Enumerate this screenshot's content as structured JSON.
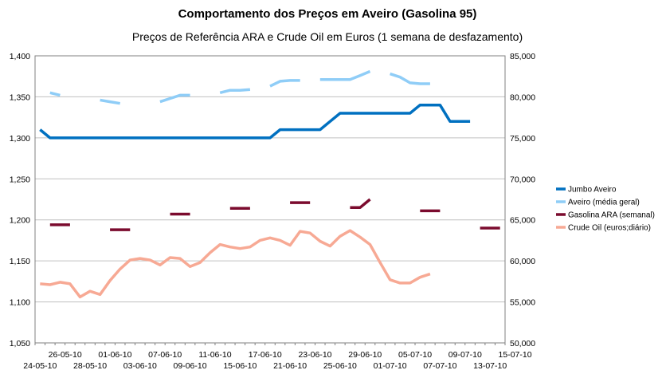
{
  "chart_data": {
    "type": "line",
    "title": "Comportamento dos Preços em Aveiro (Gasolina 95)",
    "subtitle": "Preços de Referência ARA e Crude Oil em Euros (1 semana de desfazamento)",
    "x_labels_upper": [
      "26-05-10",
      "01-06-10",
      "07-06-10",
      "11-06-10",
      "17-06-10",
      "23-06-10",
      "29-06-10",
      "05-07-10",
      "09-07-10",
      "15-07-10"
    ],
    "x_labels_lower": [
      "24-05-10",
      "28-05-10",
      "03-06-10",
      "09-06-10",
      "15-06-10",
      "21-06-10",
      "25-06-10",
      "01-07-10",
      "07-07-10",
      "13-07-10"
    ],
    "y_left": {
      "ylim": [
        1.05,
        1.4
      ],
      "ticks": [
        "1,050",
        "1,100",
        "1,150",
        "1,200",
        "1,250",
        "1,300",
        "1,350",
        "1,400"
      ]
    },
    "y_right": {
      "ylim": [
        50000,
        85000
      ],
      "ticks": [
        "50,000",
        "55,000",
        "60,000",
        "65,000",
        "70,000",
        "75,000",
        "80,000",
        "85,000"
      ]
    },
    "grid": true,
    "legend_position": "right",
    "series": [
      {
        "name": "Jumbo Aveiro",
        "color": "#0070c0",
        "axis": "left",
        "segments": [
          [
            [
              0,
              1.31
            ],
            [
              1,
              1.3
            ],
            [
              2,
              1.3
            ],
            [
              3,
              1.3
            ],
            [
              4,
              1.3
            ],
            [
              5,
              1.3
            ],
            [
              6,
              1.3
            ],
            [
              7,
              1.3
            ],
            [
              8,
              1.3
            ],
            [
              9,
              1.3
            ],
            [
              10,
              1.3
            ],
            [
              11,
              1.3
            ],
            [
              12,
              1.3
            ],
            [
              13,
              1.3
            ],
            [
              14,
              1.3
            ],
            [
              15,
              1.3
            ],
            [
              16,
              1.3
            ],
            [
              17,
              1.3
            ],
            [
              18,
              1.3
            ],
            [
              19,
              1.3
            ],
            [
              20,
              1.3
            ],
            [
              21,
              1.3
            ],
            [
              22,
              1.3
            ],
            [
              23,
              1.3
            ],
            [
              24,
              1.31
            ],
            [
              25,
              1.31
            ],
            [
              26,
              1.31
            ],
            [
              27,
              1.31
            ],
            [
              28,
              1.31
            ],
            [
              29,
              1.32
            ],
            [
              30,
              1.33
            ],
            [
              31,
              1.33
            ],
            [
              32,
              1.33
            ],
            [
              33,
              1.33
            ],
            [
              34,
              1.33
            ],
            [
              35,
              1.33
            ],
            [
              36,
              1.33
            ],
            [
              37,
              1.33
            ],
            [
              38,
              1.34
            ],
            [
              39,
              1.34
            ],
            [
              40,
              1.34
            ],
            [
              41,
              1.32
            ],
            [
              42,
              1.32
            ],
            [
              43,
              1.32
            ]
          ]
        ]
      },
      {
        "name": "Aveiro (média geral)",
        "color": "#8fcdf7",
        "axis": "left",
        "segments": [
          [
            [
              1,
              1.355
            ],
            [
              2,
              1.352
            ]
          ],
          [
            [
              6,
              1.346
            ],
            [
              7,
              1.344
            ],
            [
              8,
              1.342
            ]
          ],
          [
            [
              12,
              1.344
            ],
            [
              13,
              1.348
            ],
            [
              14,
              1.352
            ],
            [
              15,
              1.352
            ]
          ],
          [
            [
              18,
              1.355
            ],
            [
              19,
              1.358
            ],
            [
              20,
              1.358
            ],
            [
              21,
              1.359
            ]
          ],
          [
            [
              23,
              1.363
            ],
            [
              24,
              1.369
            ],
            [
              25,
              1.37
            ],
            [
              26,
              1.37
            ]
          ],
          [
            [
              28,
              1.371
            ],
            [
              29,
              1.371
            ],
            [
              30,
              1.371
            ],
            [
              31,
              1.371
            ],
            [
              32,
              1.376
            ],
            [
              33,
              1.381
            ]
          ],
          [
            [
              35,
              1.378
            ],
            [
              36,
              1.374
            ],
            [
              37,
              1.367
            ],
            [
              38,
              1.366
            ],
            [
              39,
              1.366
            ]
          ]
        ]
      },
      {
        "name": "Gasolina ARA (semanal)",
        "color": "#7b0b2e",
        "axis": "left",
        "segments": [
          [
            [
              1,
              1.194
            ],
            [
              3,
              1.194
            ]
          ],
          [
            [
              7,
              1.188
            ],
            [
              9,
              1.188
            ]
          ],
          [
            [
              13,
              1.207
            ],
            [
              15,
              1.207
            ]
          ],
          [
            [
              19,
              1.214
            ],
            [
              21,
              1.214
            ]
          ],
          [
            [
              25,
              1.221
            ],
            [
              27,
              1.221
            ]
          ],
          [
            [
              31,
              1.215
            ],
            [
              32,
              1.215
            ],
            [
              33,
              1.225
            ]
          ],
          [
            [
              38,
              1.211
            ],
            [
              40,
              1.211
            ]
          ],
          [
            [
              44,
              1.19
            ],
            [
              46,
              1.19
            ]
          ]
        ]
      },
      {
        "name": "Crude Oil (euros;diário)",
        "color": "#f7a994",
        "axis": "right",
        "segments": [
          [
            [
              0,
              57.2
            ],
            [
              1,
              57.1
            ],
            [
              2,
              57.4
            ],
            [
              3,
              57.2
            ],
            [
              4,
              55.6
            ],
            [
              5,
              56.3
            ],
            [
              6,
              55.9
            ],
            [
              7,
              57.6
            ],
            [
              8,
              59.0
            ],
            [
              9,
              60.1
            ],
            [
              10,
              60.3
            ],
            [
              11,
              60.1
            ],
            [
              12,
              59.5
            ],
            [
              13,
              60.4
            ],
            [
              14,
              60.3
            ],
            [
              15,
              59.3
            ],
            [
              16,
              59.8
            ],
            [
              17,
              61.0
            ],
            [
              18,
              62.0
            ],
            [
              19,
              61.7
            ],
            [
              20,
              61.5
            ],
            [
              21,
              61.7
            ],
            [
              22,
              62.5
            ],
            [
              23,
              62.8
            ],
            [
              24,
              62.5
            ],
            [
              25,
              61.9
            ],
            [
              26,
              63.6
            ],
            [
              27,
              63.4
            ],
            [
              28,
              62.4
            ],
            [
              29,
              61.8
            ],
            [
              30,
              63.0
            ],
            [
              31,
              63.7
            ],
            [
              32,
              62.9
            ],
            [
              33,
              62.0
            ],
            [
              34,
              59.8
            ],
            [
              35,
              57.7
            ],
            [
              36,
              57.3
            ],
            [
              37,
              57.3
            ],
            [
              38,
              58.0
            ],
            [
              39,
              58.4
            ]
          ]
        ]
      }
    ]
  }
}
